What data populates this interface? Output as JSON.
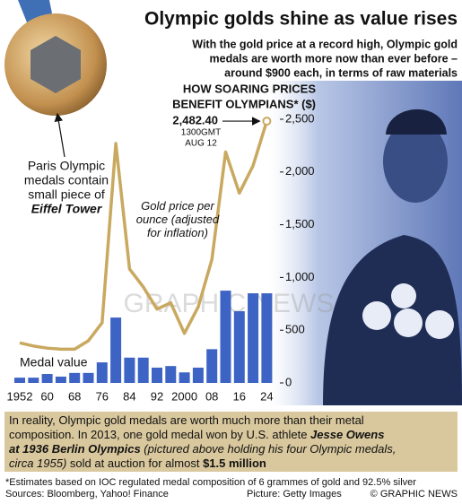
{
  "header": {
    "title": "Olympic golds shine as value rises",
    "subtitle": [
      "With the gold price at a record high, Olympic gold",
      "medals are worth more now than ever before –",
      "around $900 each, in terms of raw materials"
    ]
  },
  "chart_data": {
    "type": "bar",
    "heading": [
      "HOW SOARING PRICES",
      "BENEFIT OLYMPIANS* ($)"
    ],
    "categories": [
      "1952",
      null,
      "60",
      null,
      "68",
      null,
      "76",
      null,
      "84",
      null,
      "92",
      null,
      "2000",
      null,
      "08",
      null,
      "16",
      null,
      "24"
    ],
    "series": [
      {
        "name": "Medal value",
        "type": "bar",
        "color": "#3d63c4",
        "values": [
          50,
          50,
          85,
          60,
          95,
          95,
          195,
          620,
          240,
          240,
          145,
          160,
          100,
          145,
          320,
          875,
          680,
          850,
          850
        ]
      },
      {
        "name": "Gold price per ounce (adjusted for inflation)",
        "type": "line",
        "color": "#c9a960",
        "values": [
          380,
          350,
          330,
          320,
          320,
          400,
          570,
          2270,
          1080,
          910,
          700,
          760,
          470,
          720,
          1170,
          2190,
          1800,
          2060,
          2482.4
        ]
      }
    ],
    "ylim": [
      0,
      2500
    ],
    "yticks": [
      0,
      500,
      {
        "value": 1000,
        "label": "1,000"
      },
      {
        "value": 1500,
        "label": "1,500"
      },
      {
        "value": 2000,
        "label": "2,000"
      },
      {
        "value": 2500,
        "label": "2,500"
      }
    ],
    "grid": false,
    "annotation": {
      "label": "2,482.40",
      "time": "1300GMT",
      "date": "AUG 12"
    }
  },
  "callout": [
    "Paris Olympic",
    "medals contain",
    "small piece of",
    "Eiffel Tower"
  ],
  "watermark": "GRAPHIC NEWS",
  "story": [
    [
      {
        "text": "In reality, Olympic gold medals are worth much more than their metal",
        "style": "plain"
      }
    ],
    [
      {
        "text": "composition. In 2013, one gold medal won by U.S. athlete ",
        "style": "plain"
      },
      {
        "text": "Jesse Owens",
        "style": "bold-italic"
      }
    ],
    [
      {
        "text": "at 1936 Berlin Olympics",
        "style": "bold-italic"
      },
      {
        "text": " (pictured above holding his four Olympic medals,",
        "style": "italic"
      }
    ],
    [
      {
        "text": "circa 1955)",
        "style": "italic"
      },
      {
        "text": " sold at auction for almost ",
        "style": "plain"
      },
      {
        "text": "$1.5 million",
        "style": "bold"
      }
    ]
  ],
  "footer": {
    "note": "*Estimates based on IOC regulated medal composition of 6 grammes of gold and 92.5% silver",
    "sources": "Sources: Bloomberg, Yahoo! Finance",
    "picture": "Picture: Getty Images",
    "credit": "© GRAPHIC NEWS"
  }
}
